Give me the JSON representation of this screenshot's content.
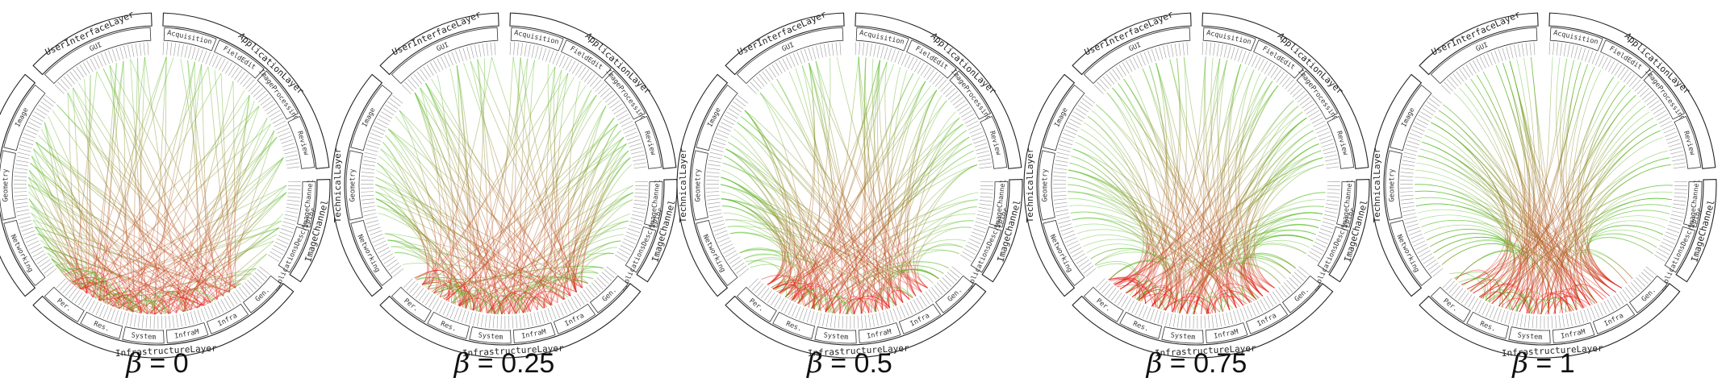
{
  "panels": [
    {
      "label": "β = 0",
      "beta_symbol": "β",
      "beta_value": "0",
      "beta": 0
    },
    {
      "label": "β = 0.25",
      "beta_symbol": "β",
      "beta_value": "0.25",
      "beta": 0.25
    },
    {
      "label": "β = 0.5",
      "beta_symbol": "β",
      "beta_value": "0.5",
      "beta": 0.5
    },
    {
      "label": "β = 0.75",
      "beta_symbol": "β",
      "beta_value": "0.75",
      "beta": 0.75
    },
    {
      "label": "β = 1",
      "beta_symbol": "β",
      "beta_value": "1",
      "beta": 1
    }
  ],
  "layers": [
    {
      "name": "UserInterfaceLayer",
      "modules": [
        "GUI"
      ]
    },
    {
      "name": "ApplicationLayer",
      "modules": [
        "Acquisition",
        "FieldEdit",
        "ImageProcessing",
        "Review"
      ]
    },
    {
      "name": "ImageChannel",
      "modules": [
        "ImageChannel",
        "ApplicationsDescriptor"
      ]
    },
    {
      "name": "InfrastructureLayer",
      "modules": [
        "Gen.",
        "Infra",
        "InfraM",
        "System",
        "Res.",
        "Per."
      ]
    },
    {
      "name": "TechnicalLayer",
      "modules": [
        "Networking",
        "Geometry",
        "Image"
      ]
    }
  ],
  "colors": {
    "edge_start": "#e8231e",
    "edge_end": "#59c22b",
    "ring_stroke": "#222222",
    "background": "#ffffff"
  }
}
